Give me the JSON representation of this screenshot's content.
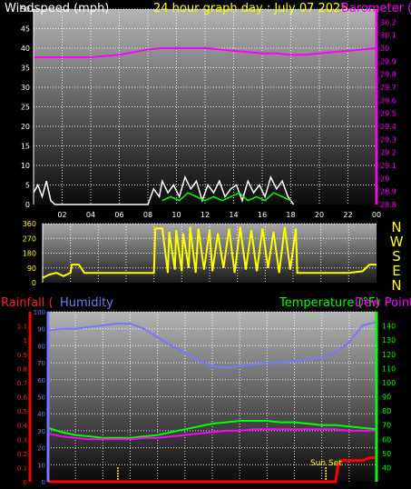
{
  "chart_data": [
    {
      "type": "line",
      "title": "24 hour graph day : July 07 2025",
      "left_axis": {
        "label": "Windspeed (mph)",
        "ylim": [
          0,
          50
        ],
        "ticks": [
          0,
          5,
          10,
          15,
          20,
          25,
          30,
          35,
          40,
          45,
          50
        ]
      },
      "right_axis": {
        "label": "Barometer (",
        "ylim": [
          28.8,
          30.3
        ],
        "ticks": [
          "28.8",
          "28.9",
          "29",
          "29.1",
          "29.2",
          "29.3",
          "29.4",
          "29.5",
          "29.6",
          "29.7",
          "29.8",
          "29.9",
          "30",
          "30.1",
          "30.2"
        ]
      },
      "x_ticks": [
        "02",
        "04",
        "06",
        "08",
        "10",
        "12",
        "14",
        "16",
        "18",
        "20",
        "22",
        "00"
      ],
      "grid": true,
      "series": [
        {
          "name": "Barometer (",
          "axis": "right",
          "color": "#ff00ff",
          "x": [
            0,
            1,
            2,
            3,
            4,
            5,
            6,
            7,
            8,
            9,
            10,
            11,
            12,
            13,
            14,
            15,
            16,
            17,
            18,
            19,
            20,
            21,
            22,
            23,
            24
          ],
          "values": [
            29.93,
            29.93,
            29.93,
            29.93,
            29.93,
            29.94,
            29.95,
            29.97,
            29.99,
            30.0,
            30.0,
            30.0,
            30.0,
            29.99,
            29.98,
            29.97,
            29.96,
            29.96,
            29.95,
            29.95,
            29.96,
            29.97,
            29.98,
            29.99,
            30.0
          ]
        },
        {
          "name": "Windspeed (mph)",
          "axis": "left",
          "color": "#ffffff",
          "x": [
            0.0,
            0.3,
            0.6,
            0.9,
            1.2,
            1.5,
            8.0,
            8.4,
            8.8,
            9.0,
            9.4,
            9.8,
            10.2,
            10.6,
            11.0,
            11.4,
            11.8,
            12.2,
            12.6,
            13.0,
            13.4,
            13.8,
            14.2,
            14.6,
            15.0,
            15.4,
            15.8,
            16.2,
            16.6,
            17.0,
            17.4,
            17.8,
            18.2
          ],
          "values": [
            3,
            5,
            2,
            6,
            1,
            0,
            0,
            4,
            2,
            6,
            3,
            5,
            2,
            7,
            4,
            6,
            1,
            5,
            3,
            6,
            2,
            4,
            5,
            1,
            6,
            3,
            5,
            2,
            7,
            4,
            6,
            2,
            0
          ]
        },
        {
          "name": "Gust",
          "axis": "left",
          "color": "#00ff00",
          "x": [
            9.0,
            9.6,
            10.2,
            10.8,
            11.4,
            12.0,
            12.6,
            13.2,
            13.8,
            14.4,
            15.0,
            15.6,
            16.2,
            16.8,
            17.4,
            18.0
          ],
          "values": [
            1,
            2,
            1,
            3,
            2,
            1,
            2,
            1,
            2,
            3,
            1,
            2,
            1,
            3,
            2,
            1
          ]
        }
      ]
    },
    {
      "type": "line",
      "left_axis": {
        "ylim": [
          0,
          360
        ],
        "ticks": [
          "0",
          "90",
          "180",
          "270",
          "360"
        ]
      },
      "right_labels": [
        "N",
        "W",
        "S",
        "E",
        "N"
      ],
      "grid": true,
      "series": [
        {
          "name": "Wind direction",
          "color": "#ffff00",
          "x": [
            0,
            0.5,
            1,
            1.5,
            2,
            2.1,
            2.6,
            3.0,
            4,
            5,
            6,
            7,
            8,
            8.1,
            8.6,
            9.0,
            9.1,
            9.5,
            9.6,
            10.0,
            10.1,
            10.5,
            10.6,
            11.0,
            11.2,
            11.6,
            12.0,
            12.2,
            12.6,
            13.0,
            13.4,
            13.8,
            14.2,
            14.6,
            15.0,
            15.4,
            15.8,
            16.2,
            16.6,
            17.0,
            17.4,
            17.8,
            18.2,
            18.3,
            19,
            20,
            21,
            22,
            23,
            23.5,
            24
          ],
          "values": [
            30,
            50,
            60,
            40,
            60,
            110,
            110,
            60,
            60,
            60,
            60,
            60,
            60,
            330,
            330,
            60,
            310,
            80,
            320,
            70,
            300,
            90,
            340,
            60,
            330,
            80,
            320,
            70,
            300,
            90,
            330,
            60,
            340,
            80,
            320,
            70,
            330,
            90,
            310,
            60,
            340,
            80,
            330,
            60,
            60,
            60,
            60,
            60,
            70,
            110,
            110
          ]
        }
      ]
    },
    {
      "type": "line",
      "left_axis_1": {
        "label": "Rainfall (",
        "ylim": [
          0,
          1.2
        ],
        "ticks": [
          "0",
          "0.1",
          "0.2",
          "0.3",
          "0.4",
          "0.5",
          "0.6",
          "0.7",
          "0.8",
          "0.9",
          "1",
          "1.1"
        ]
      },
      "left_axis_2": {
        "label": "Humidity",
        "ylim": [
          0,
          100
        ],
        "ticks": [
          0,
          10,
          20,
          30,
          40,
          50,
          60,
          70,
          80,
          90,
          100
        ]
      },
      "right_axis": {
        "label": "Temperature (°F)",
        "ylim": [
          30,
          150
        ],
        "ticks": [
          40,
          50,
          60,
          70,
          80,
          90,
          100,
          110,
          120,
          130,
          140
        ]
      },
      "overlap_label": "Dew Point",
      "annotations": [
        "Sun Set"
      ],
      "grid": true,
      "series": [
        {
          "name": "Humidity",
          "axis": "left2",
          "color": "#7777ff",
          "x": [
            0,
            1,
            2,
            3,
            4,
            5,
            6,
            7,
            8,
            9,
            10,
            11,
            12,
            13,
            14,
            15,
            16,
            17,
            18,
            19,
            20,
            21,
            22,
            23,
            24
          ],
          "values": [
            89,
            90,
            90,
            91,
            92,
            93,
            93,
            90,
            85,
            80,
            76,
            71,
            68,
            67,
            68,
            69,
            70,
            70,
            71,
            72,
            73,
            76,
            82,
            92,
            94
          ]
        },
        {
          "name": "Temperature (°F)",
          "axis": "right",
          "color": "#00ff00",
          "x": [
            0,
            1,
            2,
            3,
            4,
            5,
            6,
            7,
            8,
            9,
            10,
            11,
            12,
            13,
            14,
            15,
            16,
            17,
            18,
            19,
            20,
            21,
            22,
            23,
            24
          ],
          "values": [
            68,
            65,
            63,
            62,
            61,
            61,
            61,
            62,
            63,
            65,
            67,
            69,
            71,
            72,
            73,
            73,
            73,
            72,
            72,
            71,
            70,
            70,
            69,
            68,
            67
          ]
        },
        {
          "name": "Dew Point",
          "axis": "right",
          "color": "#ff00ff",
          "x": [
            0,
            1,
            2,
            3,
            4,
            5,
            6,
            7,
            8,
            9,
            10,
            11,
            12,
            13,
            14,
            15,
            16,
            17,
            18,
            19,
            20,
            21,
            22,
            23,
            24
          ],
          "values": [
            64,
            62,
            61,
            60,
            60,
            60,
            60,
            61,
            61,
            62,
            63,
            64,
            65,
            66,
            66,
            67,
            67,
            67,
            67,
            67,
            67,
            67,
            66,
            66,
            66
          ]
        },
        {
          "name": "Rainfall (",
          "axis": "left1",
          "color": "#ff0000",
          "x": [
            0,
            21.0,
            21.2,
            21.5,
            22,
            23,
            23.5,
            24
          ],
          "values": [
            0,
            0,
            0.12,
            0.15,
            0.15,
            0.15,
            0.17,
            0.17
          ]
        }
      ]
    }
  ]
}
